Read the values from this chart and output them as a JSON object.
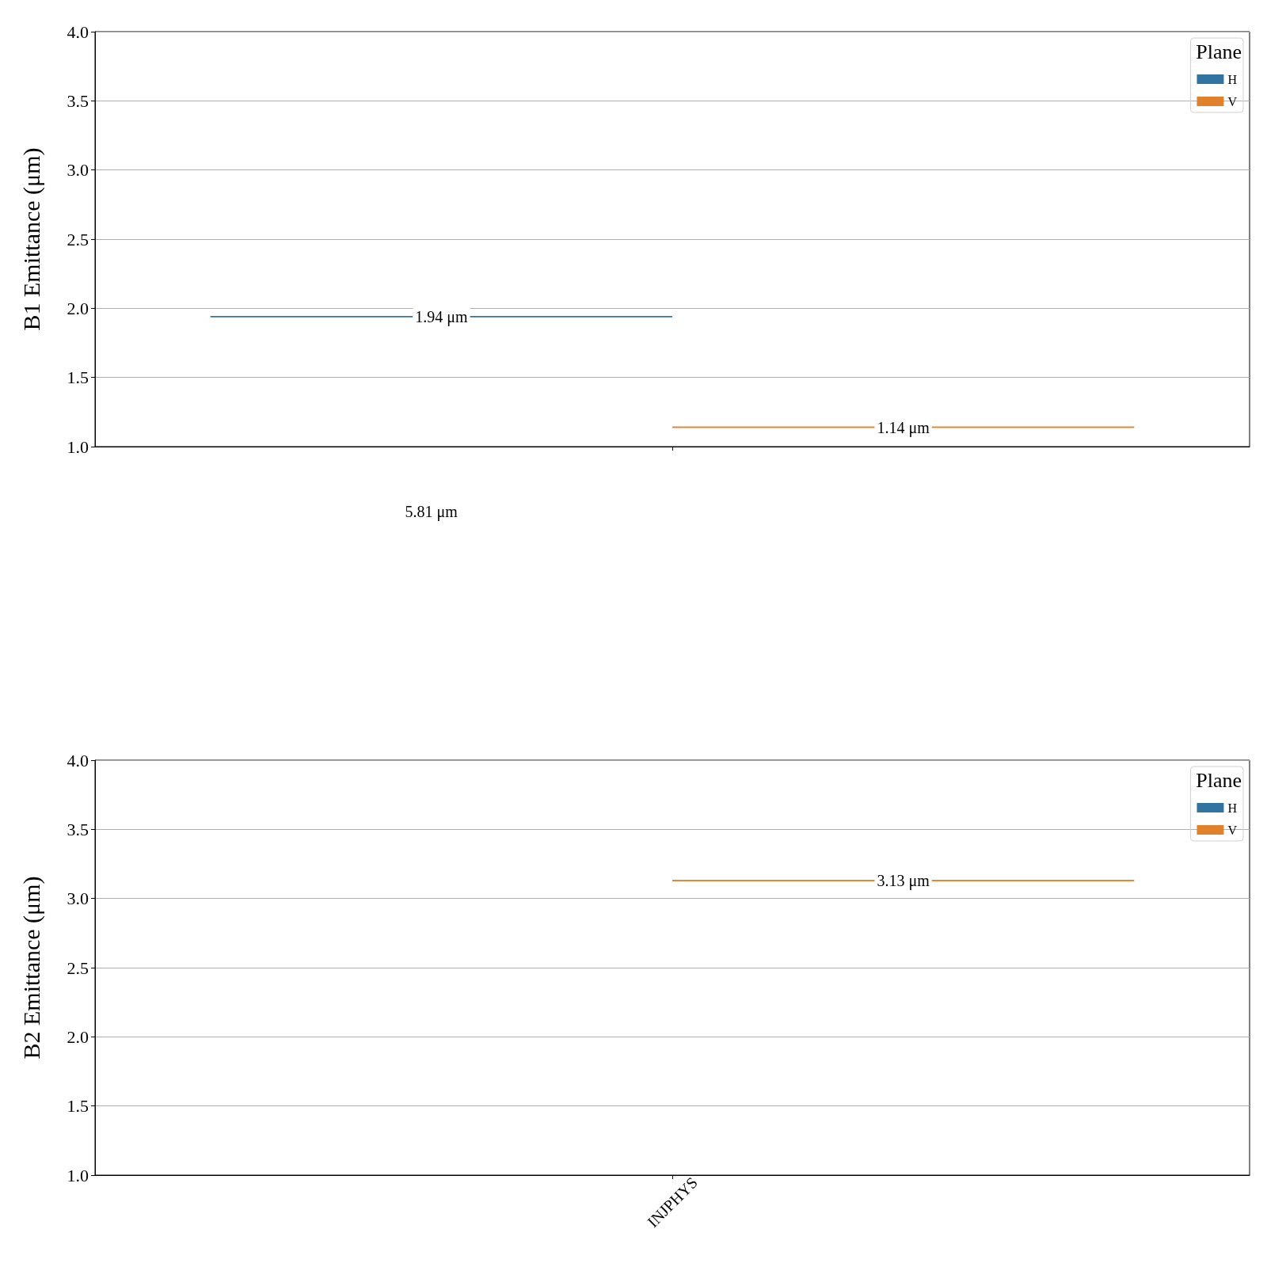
{
  "chart_data": [
    {
      "type": "box",
      "ylabel": "B1 Emittance (μm)",
      "legend_title": "Plane",
      "categories": [
        null
      ],
      "series": [
        {
          "name": "H",
          "color": "#3274a1",
          "boxes": [
            {
              "low": 1.94,
              "q1": 1.94,
              "median": 1.94,
              "q3": 1.94,
              "high": 1.94
            }
          ],
          "value_labels": [
            "1.94 μm"
          ]
        },
        {
          "name": "V",
          "color": "#e1812c",
          "boxes": [
            {
              "low": 1.14,
              "q1": 1.14,
              "median": 1.14,
              "q3": 1.14,
              "high": 1.14
            }
          ],
          "value_labels": [
            "1.14 μm"
          ]
        }
      ],
      "ylim": [
        1,
        4
      ],
      "yticks": [
        {
          "value": 1,
          "label": "1.0"
        },
        {
          "value": 1.5,
          "label": "1.5"
        },
        {
          "value": 2,
          "label": "2.0"
        },
        {
          "value": 2.5,
          "label": "2.5"
        },
        {
          "value": 3,
          "label": "3.0"
        },
        {
          "value": 3.5,
          "label": "3.5"
        },
        {
          "value": 4,
          "label": "4.0"
        }
      ],
      "grid": "y",
      "legend": "top right",
      "tick_labels": "y"
    },
    {
      "type": "box",
      "ylabel": "B2 Emittance (μm)",
      "legend_title": "Plane",
      "categories": [
        "INJPHYS"
      ],
      "series": [
        {
          "name": "H",
          "color": "#3274a1",
          "boxes": [
            null
          ],
          "value_labels": [
            null
          ]
        },
        {
          "name": "V",
          "color": "#e1812c",
          "boxes": [
            {
              "low": 3.13,
              "q1": 3.13,
              "median": 3.13,
              "q3": 3.13,
              "high": 3.13
            }
          ],
          "value_labels": [
            "3.13 μm"
          ]
        }
      ],
      "ylim": [
        1,
        4
      ],
      "yticks": [
        {
          "value": 1,
          "label": "1.0"
        },
        {
          "value": 1.5,
          "label": "1.5"
        },
        {
          "value": 2,
          "label": "2.0"
        },
        {
          "value": 2.5,
          "label": "2.5"
        },
        {
          "value": 3,
          "label": "3.0"
        },
        {
          "value": 3.5,
          "label": "3.5"
        },
        {
          "value": 4,
          "label": "4.0"
        }
      ],
      "grid": "y",
      "legend": "top right",
      "annotations": [
        "5.81 μm"
      ]
    }
  ]
}
